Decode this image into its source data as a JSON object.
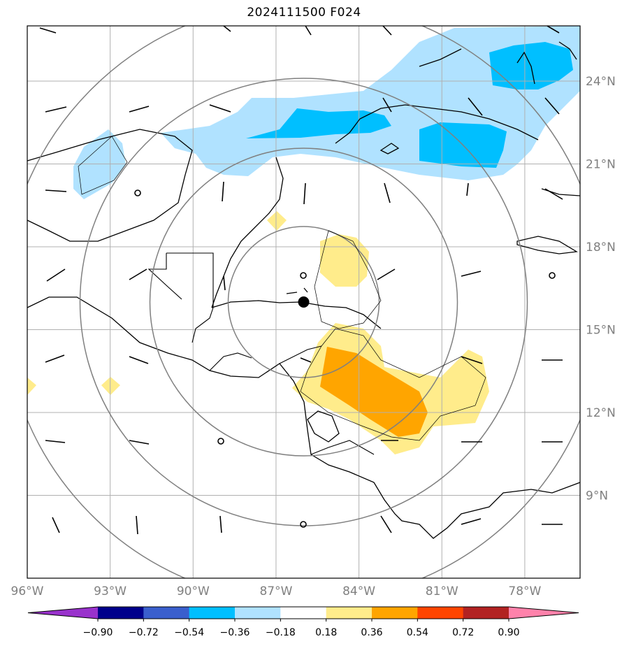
{
  "title": "2024111500 F024",
  "lon_ticks": [
    "96°W",
    "93°W",
    "90°W",
    "87°W",
    "84°W",
    "81°W",
    "78°W"
  ],
  "lat_ticks": [
    "24°N",
    "21°N",
    "18°N",
    "15°N",
    "12°N",
    "9°N"
  ],
  "colorbar": {
    "levels": [
      "−0.90",
      "−0.72",
      "−0.54",
      "−0.36",
      "−0.18",
      "0.18",
      "0.36",
      "0.54",
      "0.72",
      "0.90"
    ],
    "colors": [
      "#9932cc",
      "#00008b",
      "#3a5fcd",
      "#00bfff",
      "#b0e2ff",
      "#ffffff",
      "#ffec8b",
      "#ffa500",
      "#ff4500",
      "#b22222",
      "#ff82ab"
    ]
  },
  "map": {
    "extent": {
      "lon_min": -96,
      "lon_max": -76,
      "lat_min": 6,
      "lat_max": 26
    },
    "storm_center": {
      "lon": -86,
      "lat": 16
    },
    "range_ring_color": "#808080",
    "gridline_color": "#b0b0b0",
    "coastline_color": "#000000"
  }
}
